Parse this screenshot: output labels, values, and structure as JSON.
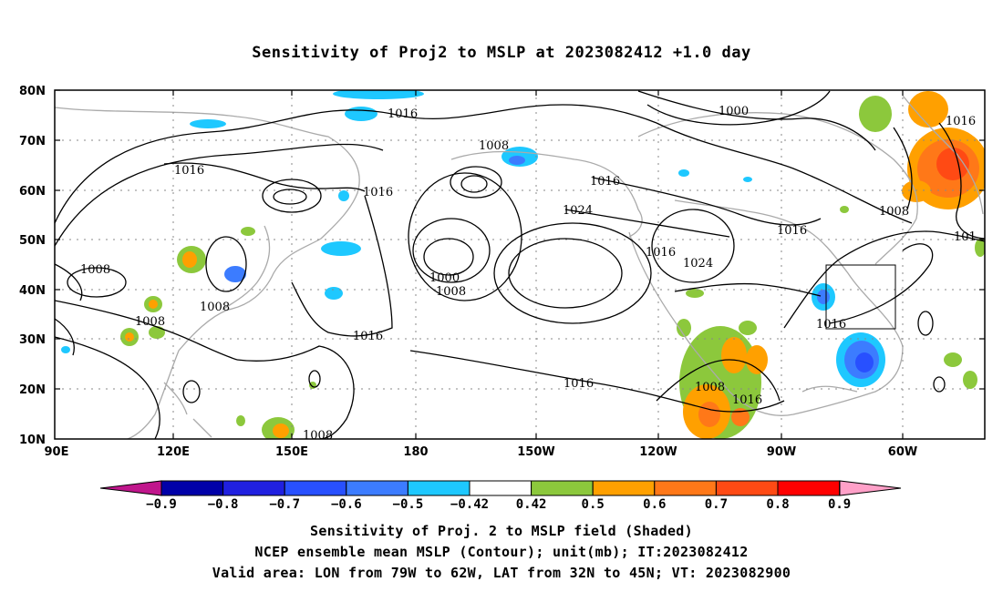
{
  "title": "Sensitivity of Proj2 to MSLP at 2023082412 +1.0 day",
  "map": {
    "lon_ticks": [
      "90E",
      "120E",
      "150E",
      "180",
      "150W",
      "120W",
      "90W",
      "60W"
    ],
    "lat_ticks": [
      "80N",
      "70N",
      "60N",
      "50N",
      "40N",
      "30N",
      "20N",
      "10N"
    ],
    "contour_labels": [
      "1016",
      "1000",
      "1008",
      "1016",
      "1016",
      "1008",
      "1008",
      "1008",
      "1000",
      "1008",
      "1016",
      "1024",
      "1016",
      "1024",
      "1016",
      "1016",
      "1008",
      "1016",
      "1016",
      "1008",
      "1016",
      "101",
      "1008"
    ],
    "valid_box": {
      "lon_from": "79W",
      "lon_to": "62W",
      "lat_from": "32N",
      "lat_to": "45N"
    }
  },
  "colorbar": {
    "labels": [
      "−0.9",
      "−0.8",
      "−0.7",
      "−0.6",
      "−0.5",
      "−0.42",
      "0.42",
      "0.5",
      "0.6",
      "0.7",
      "0.8",
      "0.9"
    ],
    "colors": [
      "#0000a8",
      "#2020e0",
      "#2850ff",
      "#3c7cff",
      "#1ec8ff",
      "#ffffff",
      "#8cc83c",
      "#ffa000",
      "#ff7818",
      "#ff4a14",
      "#ff0000"
    ],
    "low_color": "#c0168c",
    "high_color": "#ffa0c8"
  },
  "colors": {
    "contour": "#000000",
    "coast": "#aaaaaa",
    "grid": "#888888",
    "neg_light": "#1ec8ff",
    "neg_mid": "#3c7cff",
    "neg_dark": "#2850ff",
    "pos_green": "#8cc83c",
    "pos_orange": "#ffa000",
    "pos_dorange": "#ff7818",
    "pos_red": "#ff4a14"
  },
  "captions": {
    "line1": "Sensitivity of Proj. 2 to MSLP field (Shaded)",
    "line2": "NCEP ensemble mean MSLP (Contour); unit(mb); IT:2023082412",
    "line3": "Valid area: LON from 79W to 62W, LAT from 32N to 45N; VT: 2023082900"
  }
}
